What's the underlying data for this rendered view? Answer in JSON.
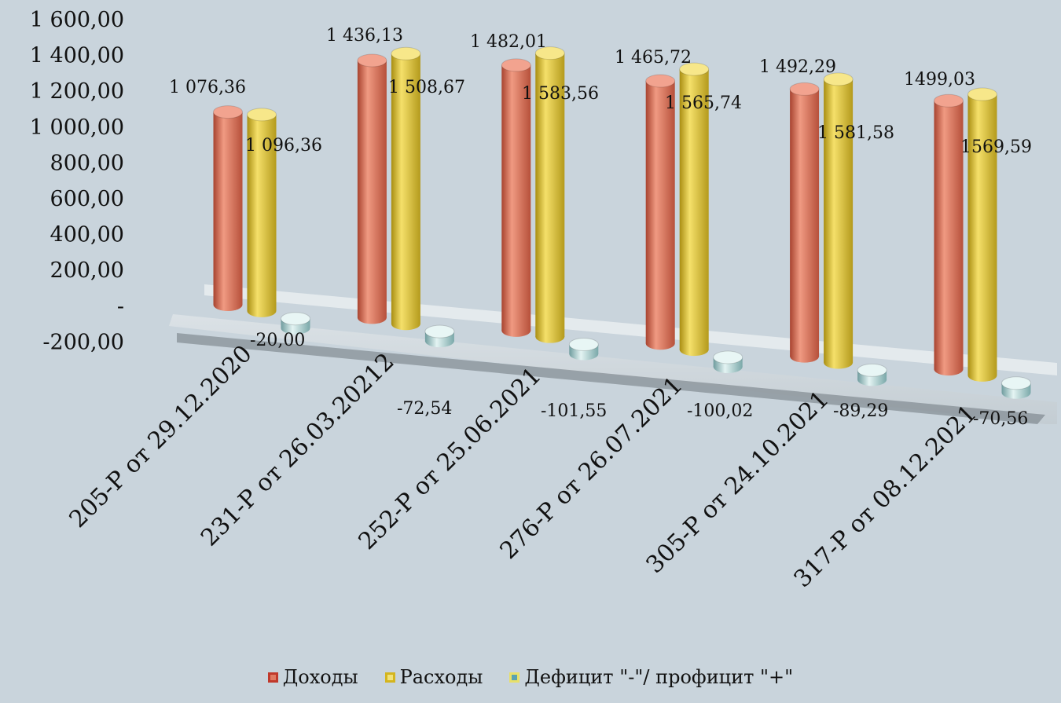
{
  "chart_data": {
    "type": "bar",
    "categories": [
      "205-Р от 29.12.2020",
      "231-Р от 26.03.20212",
      "252-Р от 25.06.2021",
      "276-Р от 26.07.2021",
      "305-Р от 24.10.2021",
      "317-Р от 08.12.2021"
    ],
    "series": [
      {
        "name": "Доходы",
        "values": [
          1076.36,
          1436.13,
          1482.01,
          1465.72,
          1492.29,
          1499.03
        ],
        "labels": [
          "1 076,36",
          "1 436,13",
          "1 482,01",
          "1 465,72",
          "1 492,29",
          "1499,03"
        ],
        "color": "#e07a62"
      },
      {
        "name": "Расходы",
        "values": [
          1096.36,
          1508.67,
          1583.56,
          1565.74,
          1581.58,
          1569.59
        ],
        "labels": [
          "1 096,36",
          "1 508,67",
          "1 583,56",
          "1 565,74",
          "1 581,58",
          "1569,59"
        ],
        "color": "#e8c93e"
      },
      {
        "name": "Дефицит \"-\"/ профицит \"+\"",
        "values": [
          -20.0,
          -72.54,
          -101.55,
          -100.02,
          -89.29,
          -70.56
        ],
        "labels": [
          "-20,00",
          "-72,54",
          "-101,55",
          "-100,02",
          "-89,29",
          "-70,56"
        ],
        "color": "#a9cfd0"
      }
    ],
    "yticks": [
      "1 600,00",
      "1 400,00",
      "1 200,00",
      "1 000,00",
      "800,00",
      "600,00",
      "400,00",
      "200,00",
      "-",
      "-200,00"
    ],
    "ylim": [
      -200,
      1600
    ],
    "grid": false,
    "legend_position": "bottom"
  }
}
